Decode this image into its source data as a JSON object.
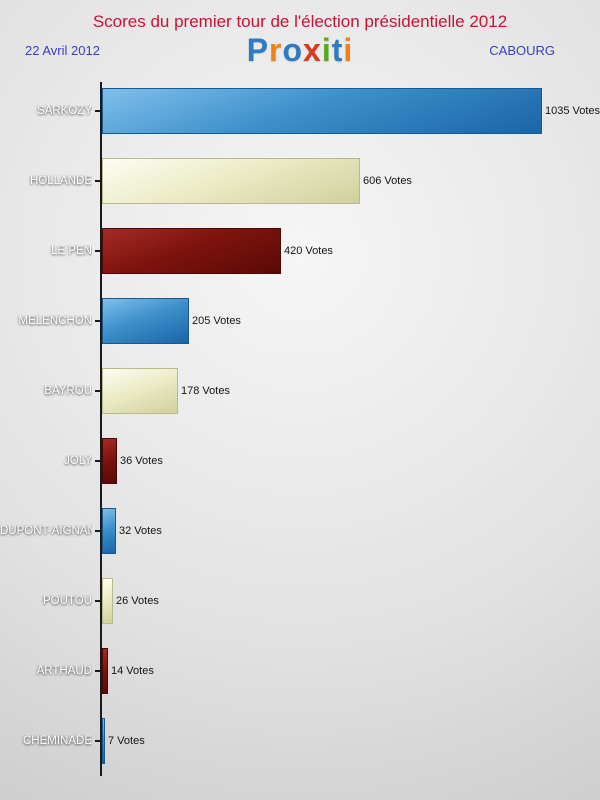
{
  "header": {
    "title": "Scores du premier tour de l'élection présidentielle 2012",
    "date": "22 Avril 2012",
    "city": "CABOURG",
    "logo_letters": [
      {
        "ch": "P",
        "color": "#2e7bc4"
      },
      {
        "ch": "r",
        "color": "#ef8318"
      },
      {
        "ch": "o",
        "color": "#2e7bc4"
      },
      {
        "ch": "x",
        "color": "#d93a1e"
      },
      {
        "ch": "i",
        "color": "#59a81e"
      },
      {
        "ch": "t",
        "color": "#2e7bc4"
      },
      {
        "ch": "i",
        "color": "#ef8318"
      }
    ]
  },
  "chart_data": {
    "type": "bar",
    "orientation": "horizontal",
    "title": "Scores du premier tour de l'élection présidentielle 2012",
    "subtitle_left": "22 Avril 2012",
    "subtitle_right": "CABOURG",
    "categories": [
      "SARKOZY",
      "HOLLANDE",
      "LE PEN",
      "MELENCHON",
      "BAYROU",
      "JOLY",
      "DUPONT-AIGNAN",
      "POUTOU",
      "ARTHAUD",
      "CHEMINADE"
    ],
    "values": [
      1035,
      606,
      420,
      205,
      178,
      36,
      32,
      26,
      14,
      7
    ],
    "value_labels": [
      "1035 Votes",
      "606 Votes",
      "420 Votes",
      "205 Votes",
      "178 Votes",
      "36 Votes",
      "32 Votes",
      "26 Votes",
      "14 Votes",
      "7 Votes"
    ],
    "bar_colors": [
      "blue",
      "cream",
      "darkred",
      "blue",
      "cream",
      "darkred",
      "blue",
      "cream",
      "darkred",
      "blue"
    ],
    "xlabel": "",
    "ylabel": "",
    "xlim": [
      0,
      1060
    ],
    "grid": false,
    "legend": "none",
    "palette": {
      "blue": "#2f7fbd",
      "cream": "#e8e8c0",
      "darkred": "#7e130f"
    }
  }
}
